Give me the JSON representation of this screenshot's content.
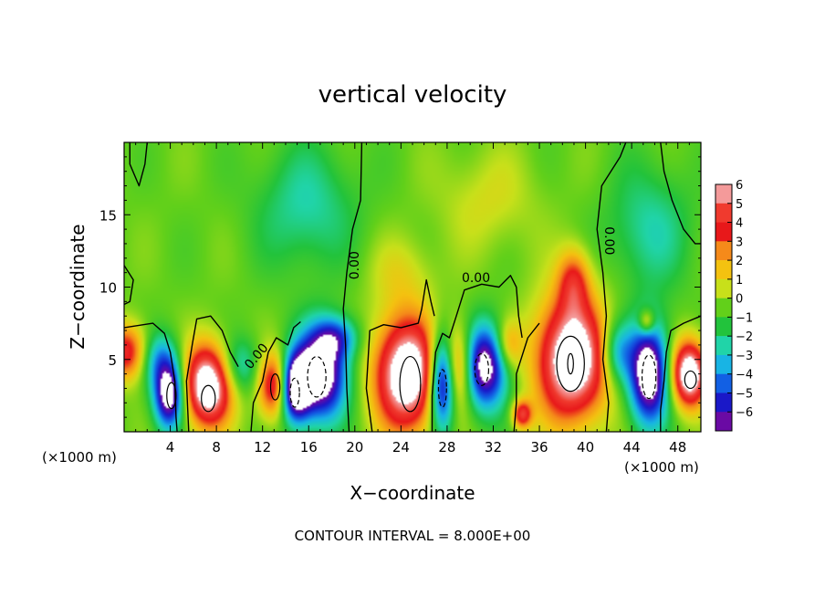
{
  "chart_data": {
    "type": "heatmap",
    "title": "vertical velocity",
    "xlabel": "X−coordinate",
    "ylabel": "Z−coordinate",
    "x_unit_left": "(×1000 m)",
    "x_unit_right": "(×1000 m)",
    "footer": "CONTOUR INTERVAL = 8.000E+00",
    "xlim": [
      0,
      50
    ],
    "ylim": [
      0,
      20
    ],
    "x_ticks": [
      4,
      8,
      12,
      16,
      20,
      24,
      28,
      32,
      36,
      40,
      44,
      48
    ],
    "y_ticks": [
      5,
      10,
      15
    ],
    "colorbar": {
      "levels": [
        6,
        5,
        4,
        3,
        2,
        1,
        0,
        -1,
        -2,
        -3,
        -4,
        -5,
        -6
      ],
      "colors": [
        "#f49a9a",
        "#f03a2e",
        "#e8181a",
        "#f58a1a",
        "#f4c210",
        "#c8e01a",
        "#62d01a",
        "#22c33c",
        "#20d4a8",
        "#18b4e4",
        "#1260e4",
        "#1a18c8",
        "#6a0aa4"
      ]
    },
    "contour_labels": [
      {
        "text": "0.00",
        "x": 20,
        "y": 11.5,
        "rotate": -90
      },
      {
        "text": "0.00",
        "x": 30.5,
        "y": 10.6,
        "rotate": 0
      },
      {
        "text": "0.00",
        "x": 42,
        "y": 13.2,
        "rotate": 90
      },
      {
        "text": "0.00",
        "x": 11.5,
        "y": 5.2,
        "rotate": -50
      }
    ],
    "features": [
      {
        "x": 0.3,
        "z": 5.5,
        "sx": 1.4,
        "sz": 1.4,
        "amp": 3.5
      },
      {
        "x": 3.9,
        "z": 2.5,
        "sx": 0.9,
        "sz": 1.6,
        "amp": -5.5
      },
      {
        "x": 3.0,
        "z": 5.0,
        "sx": 1.2,
        "sz": 1.4,
        "amp": -2.5
      },
      {
        "x": 7.3,
        "z": 3.2,
        "sx": 1.5,
        "sz": 2.0,
        "amp": 6.0
      },
      {
        "x": 10.0,
        "z": 4.5,
        "sx": 1.3,
        "sz": 1.4,
        "amp": -2.0
      },
      {
        "x": 13.0,
        "z": 3.2,
        "sx": 1.0,
        "sz": 1.6,
        "amp": 4.0
      },
      {
        "x": 14.8,
        "z": 3.0,
        "sx": 0.9,
        "sz": 1.6,
        "amp": -5.5
      },
      {
        "x": 17.0,
        "z": 4.0,
        "sx": 1.6,
        "sz": 2.2,
        "amp": -6.0
      },
      {
        "x": 18.5,
        "z": 6.5,
        "sx": 1.3,
        "sz": 1.0,
        "amp": -2.5
      },
      {
        "x": 24.5,
        "z": 4.0,
        "sx": 2.0,
        "sz": 2.8,
        "amp": 6.0
      },
      {
        "x": 27.6,
        "z": 3.5,
        "sx": 0.8,
        "sz": 2.3,
        "amp": -6.0
      },
      {
        "x": 29.0,
        "z": 4.5,
        "sx": 1.0,
        "sz": 2.0,
        "amp": 3.5
      },
      {
        "x": 31.2,
        "z": 4.5,
        "sx": 1.4,
        "sz": 2.0,
        "amp": -5.5
      },
      {
        "x": 33.3,
        "z": 6.0,
        "sx": 0.8,
        "sz": 1.2,
        "amp": 2.0
      },
      {
        "x": 34.5,
        "z": 1.2,
        "sx": 0.6,
        "sz": 0.7,
        "amp": 3.5
      },
      {
        "x": 38.8,
        "z": 5.0,
        "sx": 2.2,
        "sz": 3.0,
        "amp": 6.0
      },
      {
        "x": 39.0,
        "z": 10.5,
        "sx": 1.0,
        "sz": 1.6,
        "amp": 2.5
      },
      {
        "x": 42.8,
        "z": 5.5,
        "sx": 1.0,
        "sz": 1.5,
        "amp": -2.5
      },
      {
        "x": 45.5,
        "z": 4.0,
        "sx": 1.2,
        "sz": 2.4,
        "amp": -6.0
      },
      {
        "x": 45.3,
        "z": 7.6,
        "sx": 0.5,
        "sz": 0.6,
        "amp": 2.5
      },
      {
        "x": 49.0,
        "z": 4.0,
        "sx": 1.1,
        "sz": 1.6,
        "amp": 6.0
      },
      {
        "x": 15.8,
        "z": 15.5,
        "sx": 3.0,
        "sz": 3.0,
        "amp": -1.5
      },
      {
        "x": 45.5,
        "z": 14.0,
        "sx": 2.5,
        "sz": 3.0,
        "amp": -1.5
      },
      {
        "x": 31.5,
        "z": 16.0,
        "sx": 3.0,
        "sz": 2.5,
        "amp": 0.9
      },
      {
        "x": 24.0,
        "z": 11.0,
        "sx": 2.0,
        "sz": 1.8,
        "amp": 0.9
      }
    ],
    "contours": [
      [
        [
          0,
          7.2
        ],
        [
          2.5,
          7.5
        ],
        [
          3.5,
          6.8
        ],
        [
          4.0,
          5.5
        ],
        [
          4.4,
          3.5
        ],
        [
          4.5,
          1.0
        ],
        [
          4.6,
          0
        ]
      ],
      [
        [
          5.6,
          0
        ],
        [
          5.4,
          3.5
        ],
        [
          5.9,
          6.0
        ],
        [
          6.3,
          7.8
        ],
        [
          7.5,
          8.0
        ],
        [
          8.5,
          7.0
        ],
        [
          9.2,
          5.5
        ],
        [
          9.9,
          4.5
        ]
      ],
      [
        [
          11.0,
          0
        ],
        [
          11.2,
          2.0
        ],
        [
          12.0,
          3.5
        ],
        [
          12.5,
          5.5
        ],
        [
          13.2,
          6.5
        ],
        [
          14.2,
          6.0
        ],
        [
          14.7,
          7.2
        ],
        [
          15.3,
          7.6
        ]
      ],
      [
        [
          19.5,
          0
        ],
        [
          19.3,
          3.0
        ],
        [
          19.2,
          6.0
        ],
        [
          19.0,
          8.5
        ],
        [
          19.3,
          11.0
        ],
        [
          19.8,
          14.0
        ],
        [
          20.5,
          16.0
        ],
        [
          20.6,
          20
        ]
      ],
      [
        [
          21.5,
          0
        ],
        [
          21.0,
          3.0
        ],
        [
          21.3,
          7.0
        ],
        [
          22.5,
          7.4
        ],
        [
          24.0,
          7.2
        ],
        [
          25.5,
          7.5
        ],
        [
          25.8,
          8.5
        ],
        [
          26.2,
          10.5
        ],
        [
          26.6,
          9.0
        ],
        [
          26.9,
          8.0
        ]
      ],
      [
        [
          26.7,
          0
        ],
        [
          26.7,
          2.5
        ],
        [
          27.0,
          5.5
        ],
        [
          27.6,
          6.8
        ],
        [
          28.2,
          6.5
        ],
        [
          28.8,
          8.0
        ],
        [
          29.5,
          9.8
        ],
        [
          31.0,
          10.2
        ],
        [
          32.5,
          10.0
        ],
        [
          33.5,
          10.8
        ],
        [
          34.0,
          10.0
        ],
        [
          34.2,
          8.0
        ],
        [
          34.5,
          6.5
        ]
      ],
      [
        [
          33.8,
          0
        ],
        [
          34.0,
          2.0
        ],
        [
          34.0,
          4.0
        ],
        [
          35.0,
          6.5
        ],
        [
          36.0,
          7.5
        ]
      ],
      [
        [
          41.8,
          0
        ],
        [
          42.0,
          2.0
        ],
        [
          41.5,
          5.0
        ],
        [
          41.8,
          8.0
        ],
        [
          41.5,
          11.0
        ],
        [
          41.0,
          14.0
        ],
        [
          41.4,
          17.0
        ],
        [
          43.0,
          19.0
        ],
        [
          43.5,
          20
        ]
      ],
      [
        [
          46.5,
          0
        ],
        [
          46.5,
          1.5
        ],
        [
          46.8,
          3.5
        ],
        [
          47.0,
          5.5
        ],
        [
          47.4,
          7.0
        ],
        [
          48.5,
          7.5
        ],
        [
          50,
          8.0
        ]
      ],
      [
        [
          0.5,
          20
        ],
        [
          0.5,
          18.5
        ],
        [
          1.3,
          17.0
        ],
        [
          1.8,
          18.5
        ],
        [
          2.0,
          20
        ]
      ],
      [
        [
          0,
          11.5
        ],
        [
          0.8,
          10.5
        ],
        [
          0.5,
          9.0
        ],
        [
          0,
          8.8
        ]
      ],
      [
        [
          46.5,
          20
        ],
        [
          46.8,
          18.0
        ],
        [
          47.5,
          16.0
        ],
        [
          48.5,
          14.0
        ],
        [
          49.5,
          13.0
        ],
        [
          50,
          13.0
        ]
      ]
    ],
    "closed_contours": [
      {
        "x": 4.1,
        "z": 2.5,
        "rx": 0.4,
        "rz": 0.9,
        "dash": false
      },
      {
        "x": 7.3,
        "z": 2.3,
        "rx": 0.6,
        "rz": 0.9,
        "dash": false
      },
      {
        "x": 13.1,
        "z": 3.1,
        "rx": 0.4,
        "rz": 0.9,
        "dash": false
      },
      {
        "x": 14.8,
        "z": 2.7,
        "rx": 0.4,
        "rz": 1.0,
        "dash": true
      },
      {
        "x": 16.7,
        "z": 3.8,
        "rx": 0.8,
        "rz": 1.4,
        "dash": true
      },
      {
        "x": 24.8,
        "z": 3.3,
        "rx": 0.9,
        "rz": 1.9,
        "dash": false
      },
      {
        "x": 27.6,
        "z": 3.0,
        "rx": 0.35,
        "rz": 1.3,
        "dash": true
      },
      {
        "x": 31.0,
        "z": 4.3,
        "rx": 0.6,
        "rz": 1.1,
        "dash": true
      },
      {
        "x": 38.7,
        "z": 4.7,
        "rx": 1.2,
        "rz": 1.9,
        "dash": false
      },
      {
        "x": 38.7,
        "z": 4.7,
        "rx": 0.25,
        "rz": 0.7,
        "dash": false
      },
      {
        "x": 45.5,
        "z": 3.8,
        "rx": 0.6,
        "rz": 1.5,
        "dash": true
      },
      {
        "x": 49.1,
        "z": 3.6,
        "rx": 0.5,
        "rz": 0.6,
        "dash": false
      }
    ]
  }
}
